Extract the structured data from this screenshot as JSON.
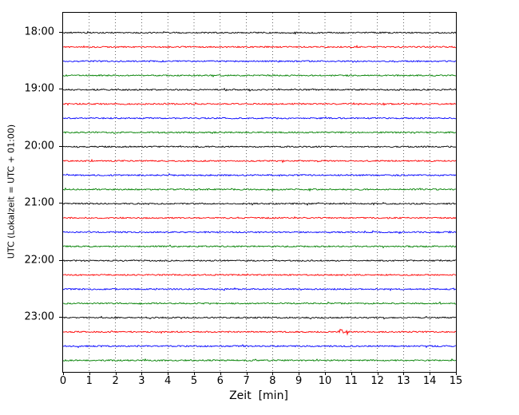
{
  "chart_data": {
    "type": "line",
    "title": "",
    "xlabel": "Zeit  [min]",
    "ylabel": "UTC (Lokalzeit = UTC + 01:00)",
    "xlim": [
      0,
      15
    ],
    "x_ticks": [
      "0",
      "1",
      "2",
      "3",
      "4",
      "5",
      "6",
      "7",
      "8",
      "9",
      "10",
      "11",
      "12",
      "13",
      "14",
      "15"
    ],
    "y_tick_labels": [
      "18:00",
      "19:00",
      "20:00",
      "21:00",
      "22:00",
      "23:00"
    ],
    "grid": {
      "vertical_minute_lines": true,
      "style": "dotted",
      "color": "#000000"
    },
    "legend_position": "none",
    "segment_minutes": 15,
    "traces_per_hour": 4,
    "color_cycle": [
      "#000000",
      "#ff0000",
      "#0000ff",
      "#008000"
    ],
    "traces": [
      {
        "start": "18:00",
        "color": "#000000"
      },
      {
        "start": "18:15",
        "color": "#ff0000"
      },
      {
        "start": "18:30",
        "color": "#0000ff"
      },
      {
        "start": "18:45",
        "color": "#008000"
      },
      {
        "start": "19:00",
        "color": "#000000"
      },
      {
        "start": "19:15",
        "color": "#ff0000"
      },
      {
        "start": "19:30",
        "color": "#0000ff"
      },
      {
        "start": "19:45",
        "color": "#008000"
      },
      {
        "start": "20:00",
        "color": "#000000"
      },
      {
        "start": "20:15",
        "color": "#ff0000"
      },
      {
        "start": "20:30",
        "color": "#0000ff"
      },
      {
        "start": "20:45",
        "color": "#008000"
      },
      {
        "start": "21:00",
        "color": "#000000"
      },
      {
        "start": "21:15",
        "color": "#ff0000"
      },
      {
        "start": "21:30",
        "color": "#0000ff"
      },
      {
        "start": "21:45",
        "color": "#008000"
      },
      {
        "start": "22:00",
        "color": "#000000"
      },
      {
        "start": "22:15",
        "color": "#ff0000"
      },
      {
        "start": "22:30",
        "color": "#0000ff"
      },
      {
        "start": "22:45",
        "color": "#008000"
      },
      {
        "start": "23:00",
        "color": "#000000"
      },
      {
        "start": "23:15",
        "color": "#ff0000"
      },
      {
        "start": "23:30",
        "color": "#0000ff"
      },
      {
        "start": "23:45",
        "color": "#008000"
      }
    ],
    "event": {
      "trace_start": "23:15",
      "minute": 10.65,
      "note": "small amplitude blip on red trace"
    }
  }
}
